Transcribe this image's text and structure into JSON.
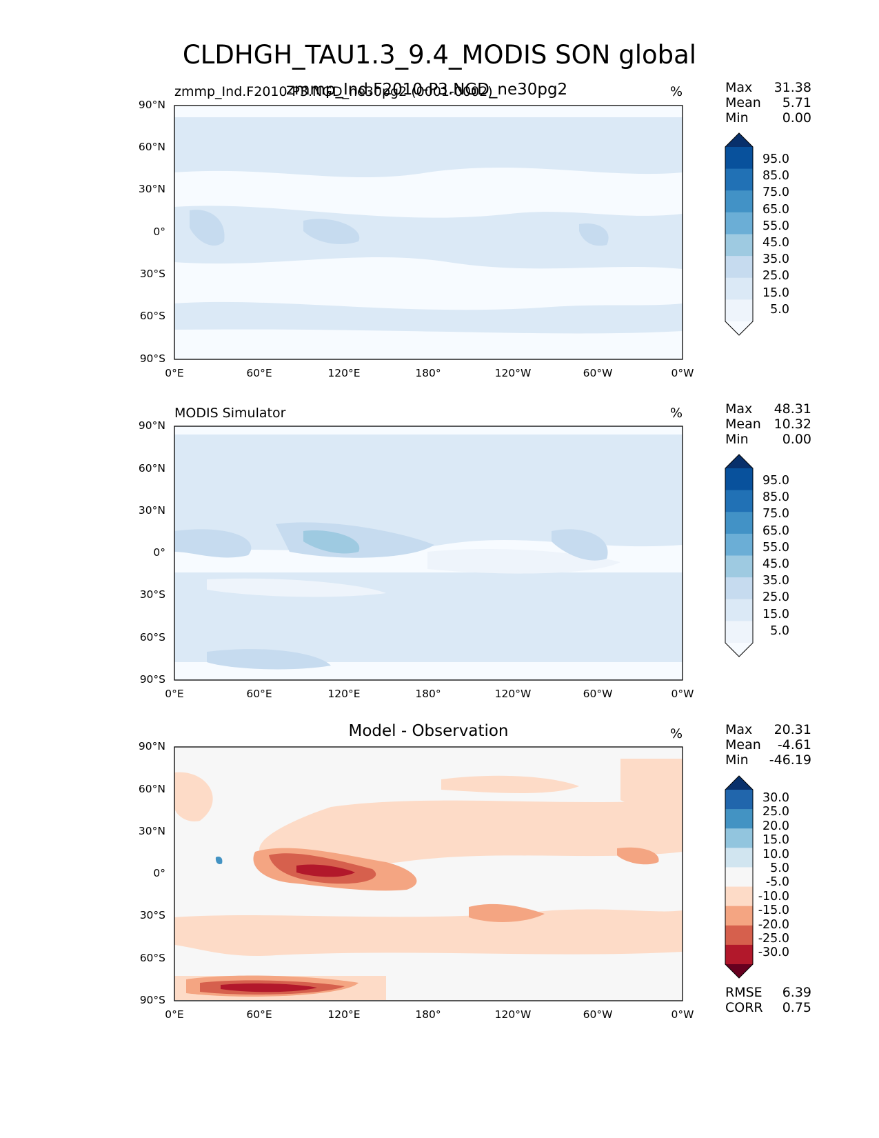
{
  "title": "CLDHGH_TAU1.3_9.4_MODIS SON global",
  "lat_ticks": [
    "90°N",
    "60°N",
    "30°N",
    "0°",
    "30°S",
    "60°S",
    "90°S"
  ],
  "lon_ticks": [
    "0°E",
    "60°E",
    "120°E",
    "180°",
    "120°W",
    "60°W",
    "0°W"
  ],
  "panels": [
    {
      "left_title": "zmmp_Ind.F2010-P3.NGD_ne30pg2 (0001-0002)",
      "center_title": "zmmp_Ind.F2010-P3.NGD_ne30pg2",
      "units": "%",
      "stats": {
        "max_label": "Max",
        "max": "31.38",
        "mean_label": "Mean",
        "mean": "5.71",
        "min_label": "Min",
        "min": "0.00"
      },
      "colorbar": {
        "labels": [
          "95.0",
          "85.0",
          "75.0",
          "65.0",
          "55.0",
          "45.0",
          "35.0",
          "25.0",
          "15.0",
          "5.0"
        ],
        "colors": [
          "#08306b",
          "#08519c",
          "#2171b5",
          "#4292c6",
          "#6baed6",
          "#9ecae1",
          "#c6dbef",
          "#dbe9f6",
          "#eef4fb",
          "#f7fbff"
        ]
      }
    },
    {
      "left_title": "MODIS Simulator",
      "center_title": "",
      "units": "%",
      "stats": {
        "max_label": "Max",
        "max": "48.31",
        "mean_label": "Mean",
        "mean": "10.32",
        "min_label": "Min",
        "min": "0.00"
      },
      "colorbar": {
        "labels": [
          "95.0",
          "85.0",
          "75.0",
          "65.0",
          "55.0",
          "45.0",
          "35.0",
          "25.0",
          "15.0",
          "5.0"
        ],
        "colors": [
          "#08306b",
          "#08519c",
          "#2171b5",
          "#4292c6",
          "#6baed6",
          "#9ecae1",
          "#c6dbef",
          "#dbe9f6",
          "#eef4fb",
          "#f7fbff"
        ]
      }
    },
    {
      "left_title": "",
      "center_title": "Model - Observation",
      "units": "%",
      "stats": {
        "max_label": "Max",
        "max": "20.31",
        "mean_label": "Mean",
        "mean": "-4.61",
        "min_label": "Min",
        "min": "-46.19"
      },
      "extra_stats": {
        "rmse_label": "RMSE",
        "rmse": "6.39",
        "corr_label": "CORR",
        "corr": "0.75"
      },
      "colorbar": {
        "labels": [
          "30.0",
          "25.0",
          "20.0",
          "15.0",
          "10.0",
          "5.0",
          "-5.0",
          "-10.0",
          "-15.0",
          "-20.0",
          "-25.0",
          "-30.0"
        ],
        "colors": [
          "#08306b",
          "#2166ac",
          "#4393c3",
          "#92c5de",
          "#d1e5f0",
          "#f7f7f7",
          "#fddbc7",
          "#f4a582",
          "#d6604d",
          "#b2182b",
          "#67001f"
        ]
      }
    }
  ]
}
